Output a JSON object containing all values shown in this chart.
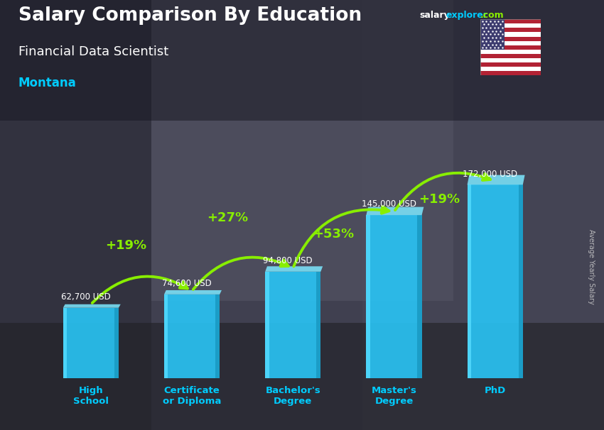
{
  "title": "Salary Comparison By Education",
  "subtitle": "Financial Data Scientist",
  "location": "Montana",
  "ylabel": "Average Yearly Salary",
  "categories": [
    "High\nSchool",
    "Certificate\nor Diploma",
    "Bachelor's\nDegree",
    "Master's\nDegree",
    "PhD"
  ],
  "values": [
    62700,
    74600,
    94800,
    145000,
    172000
  ],
  "value_labels": [
    "62,700 USD",
    "74,600 USD",
    "94,800 USD",
    "145,000 USD",
    "172,000 USD"
  ],
  "pct_labels": [
    "+19%",
    "+27%",
    "+53%",
    "+19%"
  ],
  "bar_color_main": "#29c5f6",
  "bar_color_light": "#55ddff",
  "bar_color_dark": "#1a9bc4",
  "bar_color_top": "#7de8ff",
  "bar_width": 0.55,
  "bg_color": "#3a3a4a",
  "title_color": "#ffffff",
  "subtitle_color": "#ffffff",
  "location_color": "#00ccff",
  "value_label_color": "#ffffff",
  "pct_color": "#88ee00",
  "arrow_color": "#88ee00",
  "xlabel_color": "#00ccff",
  "ylim": [
    0,
    210000
  ],
  "brand_salary_color": "#ffffff",
  "brand_explorer_color": "#00ccff",
  "brand_com_color": "#88ee00",
  "ylabel_color": "#cccccc"
}
